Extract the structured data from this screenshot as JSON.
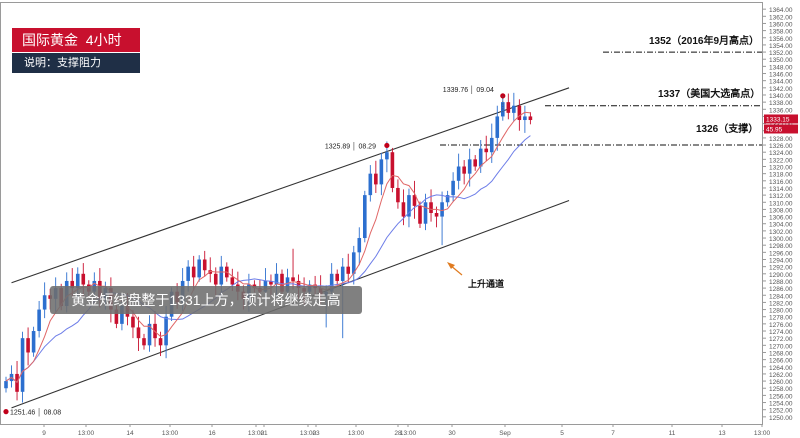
{
  "header": {
    "title": "国际黄金  4小时",
    "subtitle": "说明：支撑阻力"
  },
  "banner": {
    "text": "黄金短线盘整于1331上方，预计将继续走高"
  },
  "annotations": {
    "level_1352": "1352（2016年9月高点）",
    "level_1337": "1337（美国大选高点）",
    "level_1326": "1326（支撑）",
    "channel_label": "上升通道",
    "high_marker": "1339.76 │ 09.04",
    "mid_marker": "1325.89 │ 08.29",
    "low_marker": "1251.46 │ 08.08"
  },
  "price_tags": {
    "current": "1333.15",
    "secondary": "45.95"
  },
  "colors": {
    "up": "#2c6fcf",
    "down": "#c8102e",
    "ma_fast": "#e06666",
    "ma_slow": "#6d7de8",
    "channel": "#333333",
    "level_line": "#111111",
    "marker": "#c0001a",
    "brand_red": "#c8102e",
    "brand_navy": "#1f2f46"
  },
  "chart_data": {
    "type": "candlestick",
    "ylim": [
      1248,
      1366
    ],
    "y_ticks": [
      1250,
      1252,
      1254,
      1256,
      1258,
      1260,
      1262,
      1264,
      1266,
      1268,
      1270,
      1272,
      1274,
      1276,
      1278,
      1280,
      1282,
      1284,
      1286,
      1288,
      1290,
      1292,
      1294,
      1296,
      1298,
      1300,
      1302,
      1304,
      1306,
      1308,
      1310,
      1312,
      1314,
      1316,
      1318,
      1320,
      1322,
      1324,
      1326,
      1328,
      1330,
      1332,
      1334,
      1336,
      1338,
      1340,
      1342,
      1344,
      1346,
      1348,
      1350,
      1352,
      1354,
      1356,
      1358,
      1360,
      1362,
      1364
    ],
    "x_ticks": [
      "9",
      "13:00",
      "14",
      "13:00",
      "16",
      "13:00",
      "21",
      "13:00",
      "23",
      "13:00",
      "28",
      "13:00",
      "30",
      "Sep",
      "5",
      "7",
      "11",
      "13",
      "13:00"
    ],
    "levels": [
      {
        "value": 1352,
        "label": "1352（2016年9月高点）"
      },
      {
        "value": 1337,
        "label": "1337（美国大选高点）"
      },
      {
        "value": 1326,
        "label": "1326（支撑）"
      }
    ],
    "markers": [
      {
        "index": 0,
        "value": 1251.46,
        "label": "1251.46 │ 08.08"
      },
      {
        "index": 69,
        "value": 1325.89,
        "label": "1325.89 │ 08.29"
      },
      {
        "index": 90,
        "value": 1339.76,
        "label": "1339.76 │ 09.04"
      }
    ],
    "channel": {
      "upper": [
        [
          1,
          1287.5
        ],
        [
          102,
          1342
        ]
      ],
      "lower": [
        [
          1,
          1252.5
        ],
        [
          102,
          1310.5
        ]
      ]
    },
    "closes": [
      1260,
      1262,
      1257,
      1272,
      1268,
      1274,
      1280,
      1284,
      1283,
      1286,
      1281,
      1288,
      1286,
      1290,
      1287,
      1285,
      1288,
      1283,
      1286,
      1280,
      1276,
      1281,
      1278,
      1275,
      1272,
      1270,
      1276,
      1272,
      1270,
      1278,
      1285,
      1282,
      1288,
      1292,
      1289,
      1294,
      1291,
      1290,
      1287,
      1292,
      1289,
      1287,
      1285,
      1283,
      1287,
      1286,
      1285,
      1288,
      1287,
      1290,
      1285,
      1289,
      1288,
      1286,
      1285,
      1287,
      1286,
      1284,
      1285,
      1290,
      1288,
      1292,
      1290,
      1296,
      1300,
      1312,
      1318,
      1315,
      1322,
      1324,
      1314,
      1310,
      1306,
      1312,
      1309,
      1304,
      1310,
      1307,
      1306,
      1310,
      1312,
      1316,
      1320,
      1318,
      1322,
      1320,
      1325,
      1324,
      1328,
      1334,
      1338,
      1335,
      1337,
      1333,
      1334,
      1333
    ]
  }
}
